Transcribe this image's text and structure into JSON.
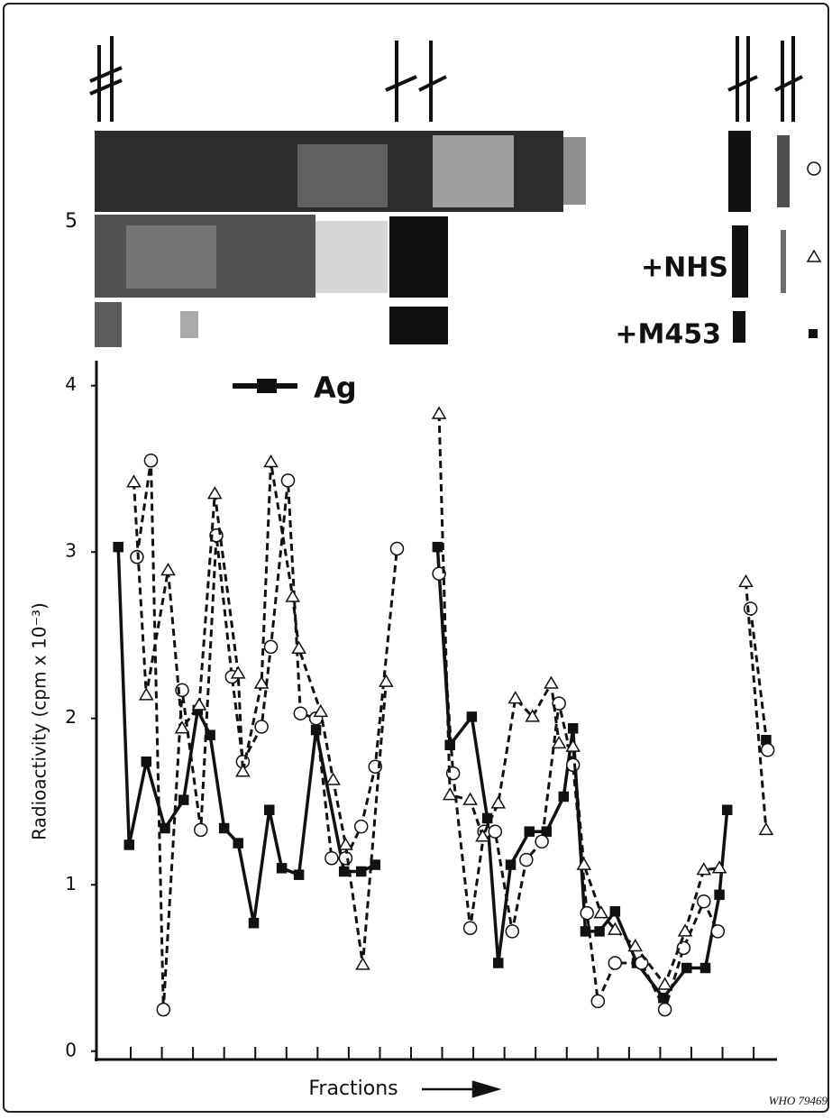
{
  "chart_data": {
    "type": "line",
    "y_label": "Radioactivity (cpm x 10⁻³)",
    "x_label": "Fractions",
    "gel_label": "5",
    "annotations": [
      "+NHS",
      "+M453"
    ],
    "credit": "WHO 79469",
    "ylim": [
      -0.05,
      4.15
    ],
    "yticks": [
      0,
      1,
      2,
      3,
      4
    ],
    "xlim": [
      0,
      43.7
    ],
    "xticks": [
      2.2,
      4.2,
      6.2,
      8.2,
      10.2,
      12.2,
      14.2,
      16.2,
      18.2,
      20.2,
      22.2,
      24.2,
      26.2,
      28.2,
      30.2,
      32.2,
      34.2,
      36.2,
      38.2,
      40.2,
      42.2
    ],
    "series": [
      {
        "name": "Ag",
        "color": "#111111",
        "marker": "square",
        "dashed": false,
        "x": [
          1.0,
          1.4,
          2.1,
          3.2,
          4.4,
          5.6,
          6.5,
          7.3,
          8.2,
          9.1,
          10.1,
          11.1,
          11.9,
          13.0,
          14.1,
          15.9,
          17.0,
          17.9,
          19.3,
          21.4,
          21.9,
          22.7,
          24.1,
          25.1,
          25.8,
          26.6,
          27.8,
          28.9,
          30.0,
          30.6,
          31.4,
          32.3,
          33.3,
          34.7,
          36.4,
          37.9,
          39.1,
          40.0,
          40.5,
          41.7,
          43.0
        ],
        "values": [
          null,
          3.03,
          1.24,
          1.74,
          1.34,
          1.51,
          2.05,
          1.9,
          1.34,
          1.25,
          0.77,
          1.45,
          1.1,
          1.06,
          1.93,
          1.08,
          1.08,
          1.12,
          null,
          null,
          3.03,
          1.84,
          2.01,
          1.4,
          0.53,
          1.12,
          1.32,
          1.32,
          1.53,
          1.94,
          0.72,
          0.72,
          0.84,
          0.53,
          0.32,
          0.5,
          0.5,
          0.94,
          1.45,
          null,
          1.87
        ]
      },
      {
        "color": "#111111",
        "marker": "circle",
        "dashed": true,
        "x": [
          2.6,
          3.5,
          4.3,
          5.5,
          6.7,
          7.7,
          8.7,
          9.4,
          10.6,
          11.2,
          12.3,
          13.1,
          14.1,
          15.1,
          16.0,
          17.0,
          17.9,
          19.3,
          20.4,
          22.0,
          22.9,
          24.0,
          24.9,
          25.6,
          26.7,
          27.6,
          28.6,
          29.7,
          30.6,
          31.5,
          32.2,
          33.3,
          35.0,
          36.5,
          37.7,
          39.0,
          39.9,
          41.0,
          42.0,
          43.1
        ],
        "values": [
          2.97,
          3.55,
          0.25,
          2.17,
          1.33,
          3.1,
          2.25,
          1.74,
          1.95,
          2.43,
          3.43,
          2.03,
          2.0,
          1.16,
          1.16,
          1.35,
          1.71,
          3.02,
          null,
          2.87,
          1.67,
          0.74,
          1.32,
          1.32,
          0.72,
          1.15,
          1.26,
          2.09,
          1.72,
          0.83,
          0.3,
          0.53,
          0.53,
          0.25,
          0.62,
          0.9,
          0.72,
          null,
          2.66,
          1.81
        ]
      },
      {
        "color": "#111111",
        "marker": "triangle",
        "dashed": true,
        "x": [
          2.4,
          3.2,
          4.6,
          5.5,
          6.6,
          7.6,
          9.1,
          9.4,
          10.6,
          11.2,
          12.6,
          13.0,
          14.4,
          15.2,
          16.0,
          17.1,
          18.6,
          20.4,
          22.0,
          22.7,
          24.0,
          24.8,
          25.8,
          26.9,
          28.0,
          29.2,
          29.7,
          30.6,
          31.3,
          32.4,
          33.3,
          34.6,
          36.5,
          37.8,
          39.0,
          40.0,
          41.1,
          41.7,
          43.0
        ],
        "values": [
          3.42,
          2.14,
          2.89,
          1.94,
          2.08,
          3.35,
          2.27,
          1.68,
          2.21,
          3.54,
          2.73,
          2.42,
          2.04,
          1.63,
          1.24,
          0.52,
          2.22,
          null,
          3.83,
          1.54,
          1.51,
          1.29,
          1.49,
          2.12,
          2.01,
          2.21,
          1.85,
          1.83,
          1.12,
          0.83,
          0.73,
          0.63,
          0.4,
          0.72,
          1.09,
          1.1,
          null,
          2.82,
          1.33
        ]
      }
    ]
  }
}
